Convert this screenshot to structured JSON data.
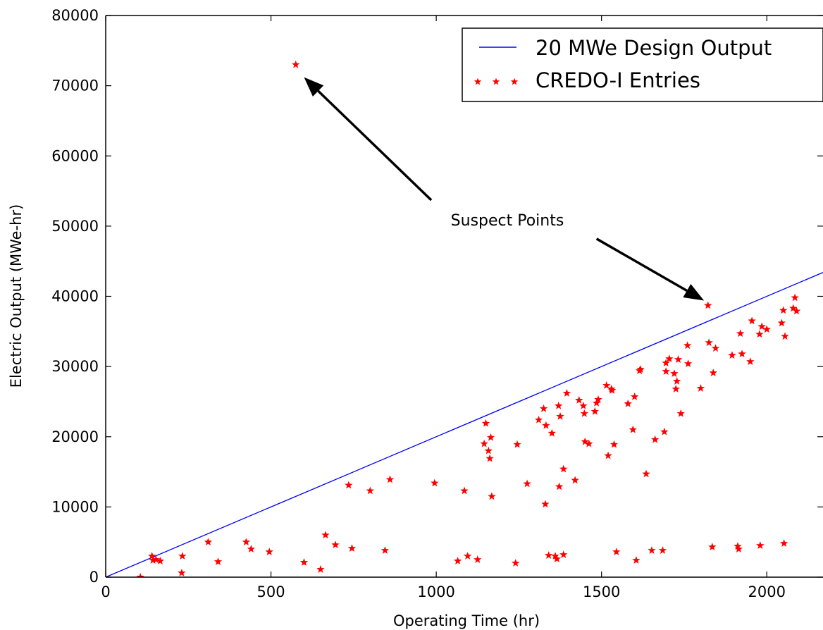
{
  "chart_data": {
    "type": "scatter",
    "title": "",
    "xlabel": "Operating Time (hr)",
    "ylabel": "Electric Output (MWe-hr)",
    "xlim": [
      0,
      2170
    ],
    "ylim": [
      0,
      80000
    ],
    "xticks": [
      0,
      500,
      1000,
      1500,
      2000
    ],
    "yticks": [
      0,
      10000,
      20000,
      30000,
      40000,
      50000,
      60000,
      70000,
      80000
    ],
    "grid": false,
    "legend_position": "top-right",
    "series": [
      {
        "name": "20 MWe Design Output",
        "kind": "line",
        "color": "#0000ff",
        "x": [
          0,
          2170
        ],
        "y": [
          0,
          43400
        ]
      },
      {
        "name": "CREDO-I Entries",
        "kind": "scatter",
        "marker": "star",
        "color": "#ff0000",
        "points": [
          [
            105,
            0
          ],
          [
            140,
            3000
          ],
          [
            143,
            2400
          ],
          [
            152,
            2500
          ],
          [
            165,
            2300
          ],
          [
            230,
            600
          ],
          [
            232,
            3000
          ],
          [
            310,
            5000
          ],
          [
            340,
            2200
          ],
          [
            425,
            5000
          ],
          [
            440,
            4000
          ],
          [
            495,
            3600
          ],
          [
            575,
            73000
          ],
          [
            600,
            2100
          ],
          [
            650,
            1100
          ],
          [
            665,
            6000
          ],
          [
            695,
            4600
          ],
          [
            735,
            13100
          ],
          [
            745,
            4100
          ],
          [
            800,
            12300
          ],
          [
            845,
            3800
          ],
          [
            860,
            13900
          ],
          [
            995,
            13400
          ],
          [
            1065,
            2300
          ],
          [
            1085,
            12300
          ],
          [
            1095,
            3000
          ],
          [
            1125,
            2500
          ],
          [
            1145,
            19000
          ],
          [
            1150,
            21900
          ],
          [
            1158,
            18000
          ],
          [
            1162,
            16900
          ],
          [
            1165,
            19900
          ],
          [
            1168,
            11500
          ],
          [
            1240,
            2000
          ],
          [
            1245,
            18900
          ],
          [
            1275,
            13300
          ],
          [
            1310,
            22400
          ],
          [
            1325,
            24000
          ],
          [
            1330,
            10400
          ],
          [
            1332,
            21600
          ],
          [
            1340,
            3100
          ],
          [
            1350,
            20500
          ],
          [
            1360,
            3000
          ],
          [
            1365,
            2600
          ],
          [
            1370,
            24400
          ],
          [
            1372,
            12900
          ],
          [
            1375,
            22900
          ],
          [
            1385,
            3200
          ],
          [
            1385,
            15400
          ],
          [
            1395,
            26200
          ],
          [
            1420,
            13800
          ],
          [
            1432,
            25200
          ],
          [
            1445,
            24400
          ],
          [
            1448,
            23300
          ],
          [
            1450,
            19300
          ],
          [
            1462,
            19000
          ],
          [
            1480,
            23600
          ],
          [
            1485,
            24800
          ],
          [
            1490,
            25300
          ],
          [
            1515,
            27300
          ],
          [
            1520,
            17300
          ],
          [
            1530,
            26800
          ],
          [
            1532,
            26600
          ],
          [
            1538,
            18900
          ],
          [
            1545,
            3600
          ],
          [
            1580,
            24700
          ],
          [
            1595,
            21000
          ],
          [
            1600,
            25700
          ],
          [
            1605,
            2400
          ],
          [
            1615,
            29400
          ],
          [
            1618,
            29600
          ],
          [
            1635,
            14700
          ],
          [
            1652,
            3800
          ],
          [
            1662,
            19600
          ],
          [
            1685,
            3800
          ],
          [
            1690,
            20700
          ],
          [
            1695,
            30500
          ],
          [
            1695,
            29300
          ],
          [
            1705,
            31100
          ],
          [
            1720,
            29000
          ],
          [
            1725,
            26800
          ],
          [
            1728,
            27900
          ],
          [
            1732,
            31000
          ],
          [
            1740,
            23300
          ],
          [
            1760,
            33000
          ],
          [
            1762,
            30400
          ],
          [
            1800,
            26900
          ],
          [
            1822,
            38700
          ],
          [
            1825,
            33400
          ],
          [
            1835,
            4300
          ],
          [
            1838,
            29100
          ],
          [
            1845,
            32600
          ],
          [
            1895,
            31600
          ],
          [
            1912,
            4400
          ],
          [
            1915,
            4000
          ],
          [
            1920,
            34700
          ],
          [
            1925,
            31800
          ],
          [
            1950,
            30700
          ],
          [
            1955,
            36500
          ],
          [
            1978,
            34600
          ],
          [
            1980,
            4500
          ],
          [
            1985,
            35700
          ],
          [
            2000,
            35300
          ],
          [
            2045,
            36200
          ],
          [
            2050,
            38000
          ],
          [
            2052,
            4800
          ],
          [
            2055,
            34300
          ],
          [
            2080,
            38300
          ],
          [
            2085,
            39800
          ],
          [
            2090,
            37900
          ]
        ]
      }
    ],
    "annotations": [
      {
        "text": "Suspect Points",
        "arrows": [
          {
            "from": [
              985,
              53700
            ],
            "to": [
              600,
              71200
            ]
          },
          {
            "from": [
              1485,
              48200
            ],
            "to": [
              1810,
              39400
            ]
          }
        ]
      }
    ]
  }
}
